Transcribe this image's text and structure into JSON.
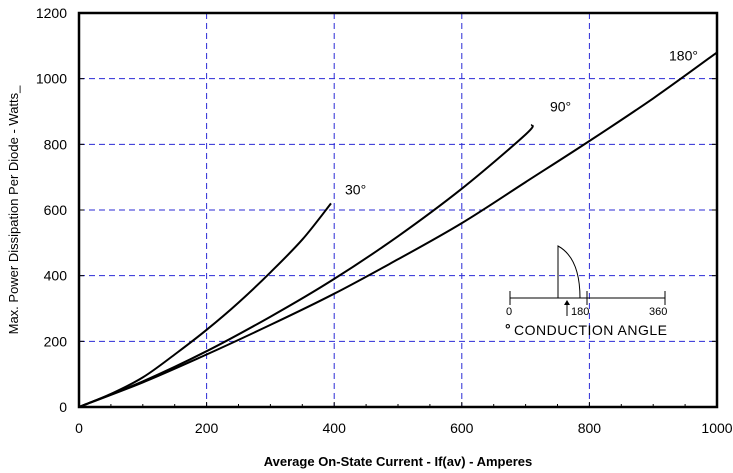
{
  "chart_data": {
    "type": "line",
    "xlabel": "Average On-State Current - If(av) - Amperes",
    "ylabel": "Max. Power Dissipation Per Diode - Watts_",
    "xlim": [
      0,
      1000
    ],
    "ylim": [
      0,
      1200
    ],
    "x_ticks": [
      "0",
      "200",
      "400",
      "600",
      "800",
      "1000"
    ],
    "y_ticks": [
      "0",
      "200",
      "400",
      "600",
      "800",
      "1000",
      "1200"
    ],
    "grid": true,
    "series": [
      {
        "name": "30°",
        "x": [
          0,
          50,
          100,
          150,
          200,
          250,
          300,
          350,
          395
        ],
        "y": [
          0,
          40,
          90,
          160,
          235,
          318,
          410,
          510,
          620
        ]
      },
      {
        "name": "90°",
        "x": [
          0,
          100,
          200,
          300,
          400,
          500,
          600,
          700,
          710
        ],
        "y": [
          0,
          78,
          170,
          275,
          390,
          520,
          665,
          830,
          860
        ]
      },
      {
        "name": "180°",
        "x": [
          0,
          100,
          200,
          300,
          400,
          500,
          600,
          700,
          800,
          900,
          1000
        ],
        "y": [
          0,
          75,
          160,
          250,
          345,
          450,
          560,
          685,
          810,
          940,
          1080
        ]
      }
    ],
    "inset": {
      "scale_labels": [
        "0",
        "180",
        "360"
      ],
      "caption_degree": "°",
      "caption": "CONDUCTION ANGLE"
    }
  }
}
